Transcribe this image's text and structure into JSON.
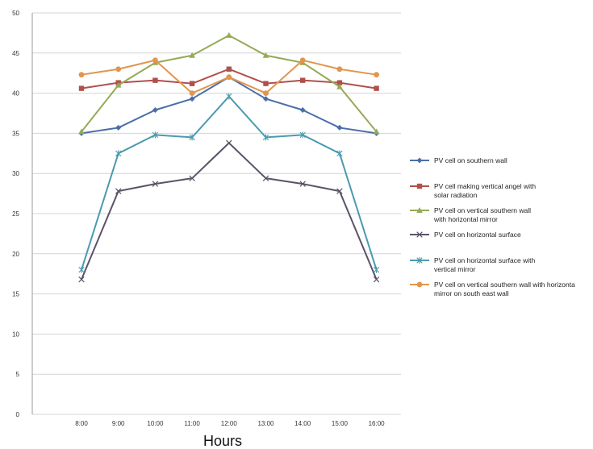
{
  "chart_data": {
    "type": "line",
    "title": "",
    "xlabel": "Hours",
    "ylabel": "",
    "ylim": [
      0,
      50
    ],
    "yticks": [
      "0",
      "5",
      "10",
      "15",
      "20",
      "25",
      "30",
      "35",
      "40",
      "45",
      "50"
    ],
    "categories": [
      "8:00",
      "9:00",
      "10:00",
      "11:00",
      "12:00",
      "13:00",
      "14:00",
      "15:00",
      "16:00"
    ],
    "grid": "horizontal",
    "legend_position": "right",
    "series": [
      {
        "name": "PV cell on southern wall",
        "color": "#4a6ea8",
        "marker": "diamond",
        "values": [
          35.0,
          35.7,
          37.9,
          39.3,
          42.0,
          39.3,
          37.9,
          35.7,
          35.0
        ]
      },
      {
        "name": "PV cell making vertical angel with solar radiation",
        "color": "#b0504c",
        "marker": "square",
        "values": [
          40.6,
          41.3,
          41.6,
          41.2,
          43.0,
          41.2,
          41.6,
          41.3,
          40.6
        ]
      },
      {
        "name": "PV cell on vertical southern wall with horizontal mirror",
        "color": "#94aa55",
        "marker": "triangle",
        "values": [
          35.2,
          41.0,
          43.8,
          44.7,
          47.2,
          44.7,
          43.8,
          40.8,
          35.2
        ]
      },
      {
        "name": "PV cell on horizontal surface",
        "color": "#5c5268",
        "marker": "x",
        "values": [
          16.8,
          27.8,
          28.7,
          29.4,
          33.8,
          29.4,
          28.7,
          27.8,
          16.8
        ]
      },
      {
        "name": "PV cell on horizontal surface with vertical mirror",
        "color": "#4a9ab0",
        "marker": "star",
        "values": [
          18.0,
          32.5,
          34.8,
          34.5,
          39.6,
          34.5,
          34.8,
          32.5,
          18.0
        ]
      },
      {
        "name": "PV cell on vertical southern wall with horizonta mirror on south east wall",
        "color": "#e0964e",
        "marker": "circle",
        "values": [
          42.3,
          43.0,
          44.1,
          40.0,
          42.0,
          40.0,
          44.1,
          43.0,
          42.3
        ]
      }
    ],
    "legend_lines": [
      [
        "PV cell on southern wall"
      ],
      [
        "PV cell making vertical angel with",
        "solar radiation"
      ],
      [
        "PV cell on vertical southern wall",
        "with horizontal mirror"
      ],
      [
        "PV cell on horizontal surface"
      ],
      [
        "PV cell on horizontal surface with",
        "vertical mirror"
      ],
      [
        "PV cell on vertical southern wall with horizonta",
        "mirror on south east wall"
      ]
    ]
  }
}
